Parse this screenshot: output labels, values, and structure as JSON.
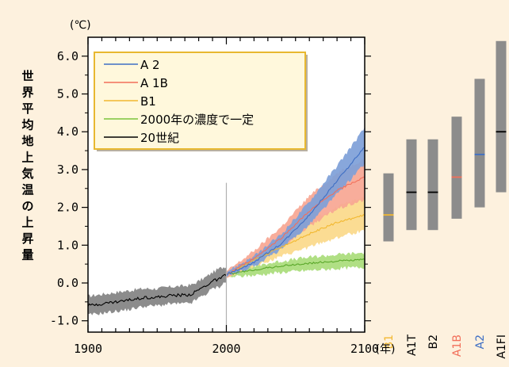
{
  "chart_data": {
    "type": "line",
    "title": "",
    "y_unit": "(℃)",
    "ylabel": "世界平均地上気温の上昇量",
    "x_unit": "(年)",
    "xlim": [
      1900,
      2100
    ],
    "ylim": [
      -1.3,
      6.5
    ],
    "x_ticks": [
      1900,
      2000,
      2100
    ],
    "x_tick_labels": [
      "1900",
      "2000",
      "2100"
    ],
    "y_ticks": [
      -1.0,
      0.0,
      1.0,
      2.0,
      3.0,
      4.0,
      5.0,
      6.0
    ],
    "y_tick_labels": [
      "-1.0",
      "0.0",
      "1.0",
      "2.0",
      "3.0",
      "4.0",
      "5.0",
      "6.0"
    ],
    "reference_line_x": 2000,
    "legend": {
      "placement": "top-left",
      "entries": [
        {
          "label": "A 2",
          "color": "#3f6fc4"
        },
        {
          "label": "A 1B",
          "color": "#f26f5a"
        },
        {
          "label": "B1",
          "color": "#f2b830"
        },
        {
          "label": "2000年の濃度で一定",
          "color": "#7cc43a"
        },
        {
          "label": "20世紀",
          "color": "#000000"
        }
      ]
    },
    "series": [
      {
        "name": "20世紀",
        "color": "#000000",
        "band_color": "#8c8c8c",
        "x": [
          1900,
          1910,
          1920,
          1930,
          1940,
          1950,
          1960,
          1970,
          1975,
          1980,
          1985,
          1990,
          1995,
          2000
        ],
        "y": [
          -0.6,
          -0.55,
          -0.5,
          -0.45,
          -0.38,
          -0.38,
          -0.33,
          -0.32,
          -0.3,
          -0.18,
          -0.08,
          0.05,
          0.1,
          0.22
        ],
        "low": [
          -0.85,
          -0.8,
          -0.75,
          -0.7,
          -0.62,
          -0.6,
          -0.55,
          -0.55,
          -0.52,
          -0.4,
          -0.3,
          -0.15,
          -0.1,
          0.05
        ],
        "high": [
          -0.35,
          -0.3,
          -0.25,
          -0.2,
          -0.15,
          -0.15,
          -0.1,
          -0.08,
          -0.05,
          0.05,
          0.15,
          0.28,
          0.38,
          0.45
        ]
      },
      {
        "name": "2000年の濃度で一定",
        "color": "#5aa82a",
        "band_color": "#a9dc7a",
        "x": [
          2000,
          2020,
          2040,
          2060,
          2080,
          2100
        ],
        "y": [
          0.22,
          0.35,
          0.45,
          0.52,
          0.58,
          0.62
        ],
        "low": [
          0.15,
          0.2,
          0.28,
          0.33,
          0.38,
          0.42
        ],
        "high": [
          0.3,
          0.45,
          0.58,
          0.68,
          0.75,
          0.8
        ]
      },
      {
        "name": "B1",
        "color": "#f2b830",
        "band_color": "#fbd98a",
        "x": [
          2000,
          2020,
          2040,
          2060,
          2080,
          2100
        ],
        "y": [
          0.22,
          0.6,
          0.95,
          1.3,
          1.6,
          1.8
        ],
        "low": [
          0.15,
          0.45,
          0.7,
          0.95,
          1.2,
          1.4
        ],
        "high": [
          0.3,
          0.75,
          1.2,
          1.65,
          2.0,
          2.3
        ]
      },
      {
        "name": "A 1B",
        "color": "#f26f5a",
        "band_color": "#f7a692",
        "x": [
          2000,
          2020,
          2040,
          2060,
          2080,
          2100
        ],
        "y": [
          0.22,
          0.65,
          1.2,
          1.9,
          2.45,
          2.8
        ],
        "low": [
          0.15,
          0.5,
          0.95,
          1.5,
          1.95,
          2.2
        ],
        "high": [
          0.3,
          0.85,
          1.5,
          2.3,
          2.9,
          3.3
        ]
      },
      {
        "name": "A 2",
        "color": "#3f6fc4",
        "band_color": "#7ea0d8",
        "x": [
          2000,
          2020,
          2040,
          2060,
          2080,
          2100
        ],
        "y": [
          0.22,
          0.55,
          1.05,
          1.8,
          2.7,
          3.6
        ],
        "low": [
          0.15,
          0.45,
          0.9,
          1.55,
          2.35,
          3.15
        ],
        "high": [
          0.3,
          0.7,
          1.3,
          2.15,
          3.1,
          4.1
        ]
      }
    ],
    "scenario_ranges": [
      {
        "label": "B1",
        "color": "#f2b830",
        "low": 1.1,
        "high": 2.9,
        "best": 1.8
      },
      {
        "label": "A1T",
        "color": "#000000",
        "low": 1.4,
        "high": 3.8,
        "best": 2.4
      },
      {
        "label": "B2",
        "color": "#000000",
        "low": 1.4,
        "high": 3.8,
        "best": 2.4
      },
      {
        "label": "A1B",
        "color": "#f26f5a",
        "low": 1.7,
        "high": 4.4,
        "best": 2.8
      },
      {
        "label": "A2",
        "color": "#3f6fc4",
        "low": 2.0,
        "high": 5.4,
        "best": 3.4
      },
      {
        "label": "A1FI",
        "color": "#000000",
        "low": 2.4,
        "high": 6.4,
        "best": 4.0
      }
    ],
    "range_bar_color": "#8c8c8c"
  }
}
